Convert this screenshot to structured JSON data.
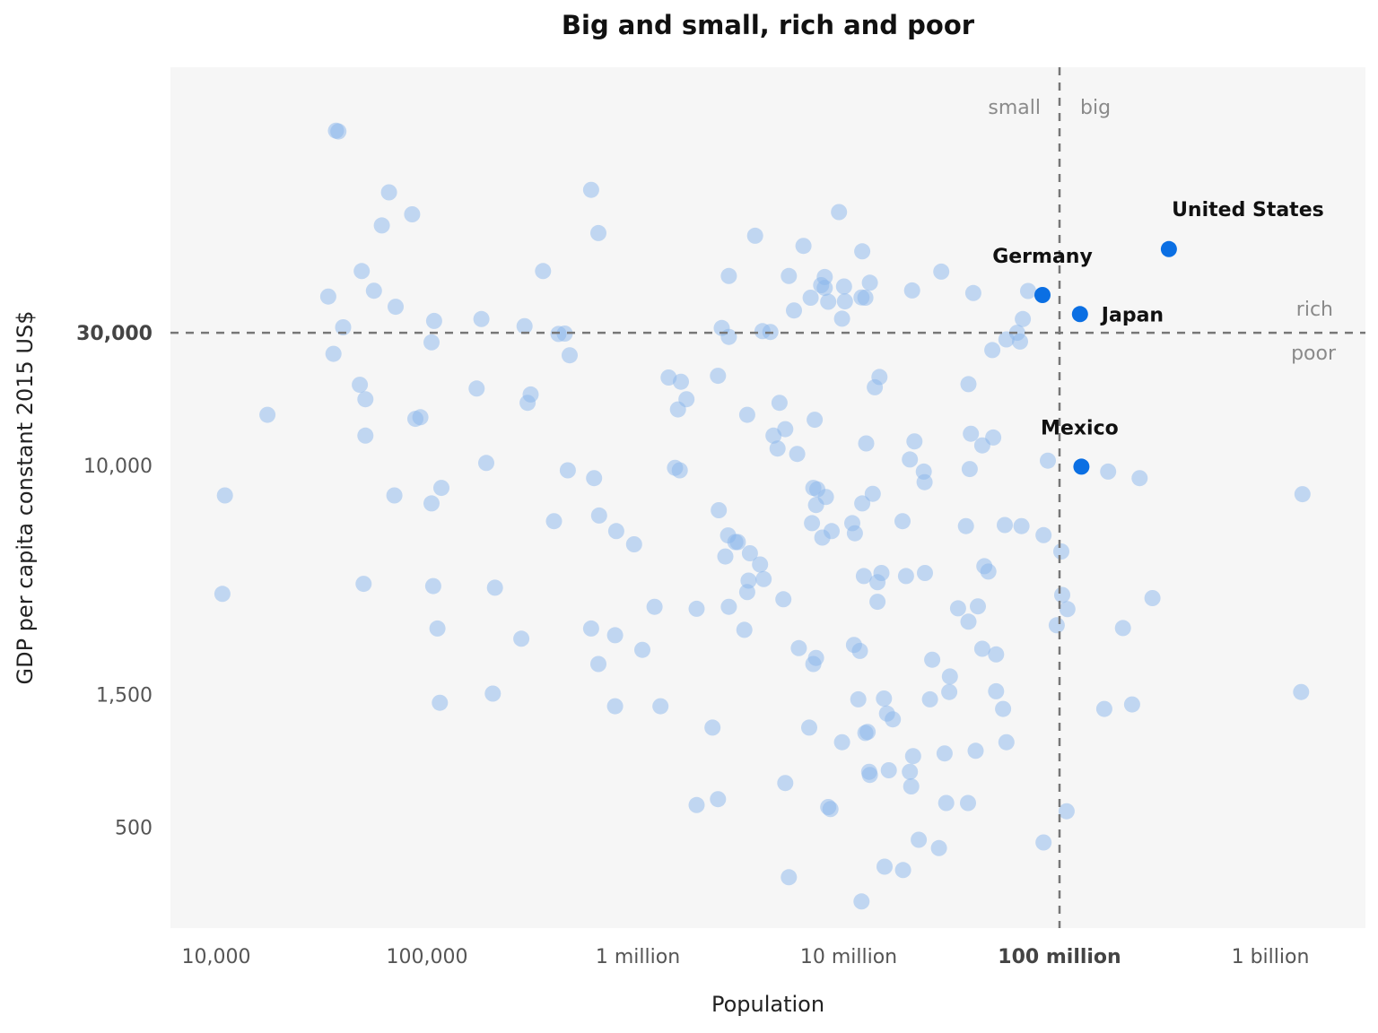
{
  "chart_data": {
    "type": "scatter",
    "title": "Big and small, rich and poor",
    "xlabel": "Population",
    "ylabel": "GDP per capita constant 2015 US$",
    "x_scale": "log",
    "y_scale": "log",
    "xlim": [
      6000,
      2200000000
    ],
    "ylim": [
      200,
      160000
    ],
    "x_ticks": [
      {
        "value": 10000,
        "label": "10,000",
        "bold": false
      },
      {
        "value": 100000,
        "label": "100,000",
        "bold": false
      },
      {
        "value": 1000000,
        "label": "1 million",
        "bold": false
      },
      {
        "value": 10000000,
        "label": "10 million",
        "bold": false
      },
      {
        "value": 100000000,
        "label": "100 million",
        "bold": true
      },
      {
        "value": 1000000000,
        "label": "1 billion",
        "bold": false
      }
    ],
    "y_ticks": [
      {
        "value": 30000,
        "label": "30,000",
        "bold": true
      },
      {
        "value": 10000,
        "label": "10,000",
        "bold": false
      },
      {
        "value": 1500,
        "label": "1,500",
        "bold": false
      },
      {
        "value": 500,
        "label": "500",
        "bold": false
      }
    ],
    "reference_lines": {
      "x": 100000000,
      "y": 30000
    },
    "quadrant_labels": {
      "left": "small",
      "right": "big",
      "top": "rich",
      "bottom": "poor"
    },
    "grid": false,
    "legend": "none",
    "colors": {
      "background_panel": "#f6f6f6",
      "point": "#8ab6ec",
      "highlight": "#0b6fe3",
      "reference_line": "#777777"
    },
    "highlighted": [
      {
        "name": "United States",
        "population": 330000000,
        "gdp_per_capita": 60000
      },
      {
        "name": "Germany",
        "population": 83000000,
        "gdp_per_capita": 41000
      },
      {
        "name": "Japan",
        "population": 125000000,
        "gdp_per_capita": 35000
      },
      {
        "name": "Mexico",
        "population": 127000000,
        "gdp_per_capita": 9900
      }
    ],
    "points": [
      [
        37000,
        160000
      ],
      [
        38000,
        159000
      ],
      [
        66000,
        96000
      ],
      [
        85000,
        80000
      ],
      [
        61000,
        73000
      ],
      [
        49000,
        50000
      ],
      [
        56000,
        42500
      ],
      [
        34000,
        40500
      ],
      [
        71000,
        37200
      ],
      [
        40000,
        31400
      ],
      [
        108000,
        33100
      ],
      [
        105000,
        27700
      ],
      [
        36000,
        25200
      ],
      [
        48000,
        19500
      ],
      [
        51000,
        17300
      ],
      [
        88000,
        14700
      ],
      [
        93000,
        14900
      ],
      [
        51000,
        12800
      ],
      [
        17500,
        15200
      ],
      [
        11000,
        7800
      ],
      [
        10700,
        3450
      ],
      [
        50000,
        3750
      ],
      [
        105000,
        7300
      ],
      [
        117000,
        8300
      ],
      [
        70000,
        7800
      ],
      [
        191000,
        10200
      ],
      [
        172000,
        18900
      ],
      [
        181000,
        33600
      ],
      [
        290000,
        31700
      ],
      [
        355000,
        50000
      ],
      [
        600000,
        98000
      ],
      [
        650000,
        68500
      ],
      [
        420000,
        29700
      ],
      [
        450000,
        29800
      ],
      [
        475000,
        24900
      ],
      [
        310000,
        18000
      ],
      [
        300000,
        16800
      ],
      [
        465000,
        9600
      ],
      [
        620000,
        9000
      ],
      [
        400000,
        6300
      ],
      [
        655000,
        6600
      ],
      [
        790000,
        5800
      ],
      [
        960000,
        5200
      ],
      [
        210000,
        3630
      ],
      [
        107000,
        3680
      ],
      [
        112000,
        2590
      ],
      [
        280000,
        2380
      ],
      [
        600000,
        2590
      ],
      [
        780000,
        2450
      ],
      [
        1050000,
        2170
      ],
      [
        650000,
        1930
      ],
      [
        1200000,
        3100
      ],
      [
        1900000,
        3050
      ],
      [
        205000,
        1510
      ],
      [
        115000,
        1400
      ],
      [
        780000,
        1360
      ],
      [
        1280000,
        1360
      ],
      [
        1900000,
        600
      ],
      [
        2400000,
        630
      ],
      [
        2260000,
        1140
      ],
      [
        6500000,
        1140
      ],
      [
        5000000,
        720
      ],
      [
        8000000,
        590
      ],
      [
        8200000,
        580
      ],
      [
        5200000,
        330
      ],
      [
        9300000,
        1010
      ],
      [
        12000000,
        1090
      ],
      [
        12300000,
        1100
      ],
      [
        12500000,
        790
      ],
      [
        12600000,
        770
      ],
      [
        15500000,
        800
      ],
      [
        11500000,
        270
      ],
      [
        14800000,
        360
      ],
      [
        18100000,
        350
      ],
      [
        21500000,
        450
      ],
      [
        26800000,
        420
      ],
      [
        29000000,
        610
      ],
      [
        36800000,
        610
      ],
      [
        19500000,
        790
      ],
      [
        19800000,
        700
      ],
      [
        28500000,
        920
      ],
      [
        20200000,
        900
      ],
      [
        11100000,
        1440
      ],
      [
        14700000,
        1450
      ],
      [
        15200000,
        1280
      ],
      [
        16200000,
        1220
      ],
      [
        24300000,
        1440
      ],
      [
        30000000,
        1530
      ],
      [
        30200000,
        1740
      ],
      [
        24900000,
        2000
      ],
      [
        50000000,
        1540
      ],
      [
        54000000,
        1330
      ],
      [
        56000000,
        1010
      ],
      [
        40000000,
        940
      ],
      [
        108000000,
        570
      ],
      [
        84000000,
        440
      ],
      [
        109000000,
        3040
      ],
      [
        103000000,
        3420
      ],
      [
        97000000,
        2660
      ],
      [
        163000000,
        1330
      ],
      [
        221000000,
        1380
      ],
      [
        200000000,
        2600
      ],
      [
        276000000,
        3330
      ],
      [
        1400000000,
        1530
      ],
      [
        1420000000,
        7880
      ],
      [
        240000000,
        9000
      ],
      [
        170000000,
        9500
      ],
      [
        88000000,
        10400
      ],
      [
        102000000,
        4900
      ],
      [
        84000000,
        5610
      ],
      [
        66000000,
        6050
      ],
      [
        55000000,
        6100
      ],
      [
        36000000,
        6050
      ],
      [
        44000000,
        4340
      ],
      [
        46000000,
        4150
      ],
      [
        41000000,
        3110
      ],
      [
        37000000,
        2740
      ],
      [
        33000000,
        3060
      ],
      [
        43000000,
        2190
      ],
      [
        50000000,
        2090
      ],
      [
        2400000,
        21000
      ],
      [
        3300000,
        15200
      ],
      [
        5000000,
        13500
      ],
      [
        4400000,
        12800
      ],
      [
        4600000,
        11500
      ],
      [
        5700000,
        11000
      ],
      [
        6900000,
        14600
      ],
      [
        2500000,
        31200
      ],
      [
        2700000,
        29000
      ],
      [
        3900000,
        30400
      ],
      [
        4250000,
        30200
      ],
      [
        9300000,
        33700
      ],
      [
        8000000,
        38800
      ],
      [
        9600000,
        38900
      ],
      [
        11500000,
        40200
      ],
      [
        9500000,
        44000
      ],
      [
        12000000,
        40100
      ],
      [
        11600000,
        58900
      ],
      [
        12600000,
        45400
      ],
      [
        6600000,
        40100
      ],
      [
        5500000,
        36100
      ],
      [
        7400000,
        44500
      ],
      [
        7700000,
        43500
      ],
      [
        20000000,
        42600
      ],
      [
        7700000,
        47600
      ],
      [
        5200000,
        48000
      ],
      [
        6100000,
        61600
      ],
      [
        9000000,
        81500
      ],
      [
        27500000,
        49800
      ],
      [
        39000000,
        41700
      ],
      [
        71000000,
        42400
      ],
      [
        67000000,
        33600
      ],
      [
        48000000,
        26000
      ],
      [
        56000000,
        28400
      ],
      [
        63000000,
        30000
      ],
      [
        65000000,
        27900
      ],
      [
        37000000,
        19600
      ],
      [
        43000000,
        11800
      ],
      [
        38000000,
        13000
      ],
      [
        48500000,
        12600
      ],
      [
        19500000,
        10500
      ],
      [
        20500000,
        12200
      ],
      [
        22700000,
        9500
      ],
      [
        37500000,
        9700
      ],
      [
        14000000,
        20800
      ],
      [
        13300000,
        19100
      ],
      [
        12100000,
        12000
      ],
      [
        2700000,
        48000
      ],
      [
        3600000,
        67000
      ],
      [
        1400000,
        20700
      ],
      [
        1600000,
        20000
      ],
      [
        1700000,
        17300
      ],
      [
        1550000,
        15900
      ],
      [
        1580000,
        9600
      ],
      [
        1500000,
        9800
      ],
      [
        4700000,
        16800
      ],
      [
        6800000,
        8300
      ],
      [
        7100000,
        8200
      ],
      [
        7800000,
        7700
      ],
      [
        6700000,
        6200
      ],
      [
        7500000,
        5500
      ],
      [
        10400000,
        6200
      ],
      [
        10700000,
        5700
      ],
      [
        11600000,
        7300
      ],
      [
        13000000,
        7900
      ],
      [
        11800000,
        4000
      ],
      [
        14300000,
        4100
      ],
      [
        13700000,
        3800
      ],
      [
        18700000,
        4000
      ],
      [
        23000000,
        4100
      ],
      [
        18000000,
        6300
      ],
      [
        22900000,
        8700
      ],
      [
        2700000,
        3100
      ],
      [
        2600000,
        4700
      ],
      [
        2680000,
        5600
      ],
      [
        2980000,
        5300
      ],
      [
        2900000,
        5300
      ],
      [
        3400000,
        4830
      ],
      [
        3800000,
        4400
      ],
      [
        3950000,
        3900
      ],
      [
        2420000,
        6900
      ],
      [
        3300000,
        3500
      ],
      [
        3350000,
        3850
      ],
      [
        4900000,
        3300
      ],
      [
        3200000,
        2560
      ],
      [
        5800000,
        2200
      ],
      [
        6800000,
        1930
      ],
      [
        7000000,
        2030
      ],
      [
        10600000,
        2260
      ],
      [
        11300000,
        2150
      ],
      [
        13700000,
        3230
      ],
      [
        7000000,
        7200
      ],
      [
        8300000,
        5800
      ]
    ]
  }
}
